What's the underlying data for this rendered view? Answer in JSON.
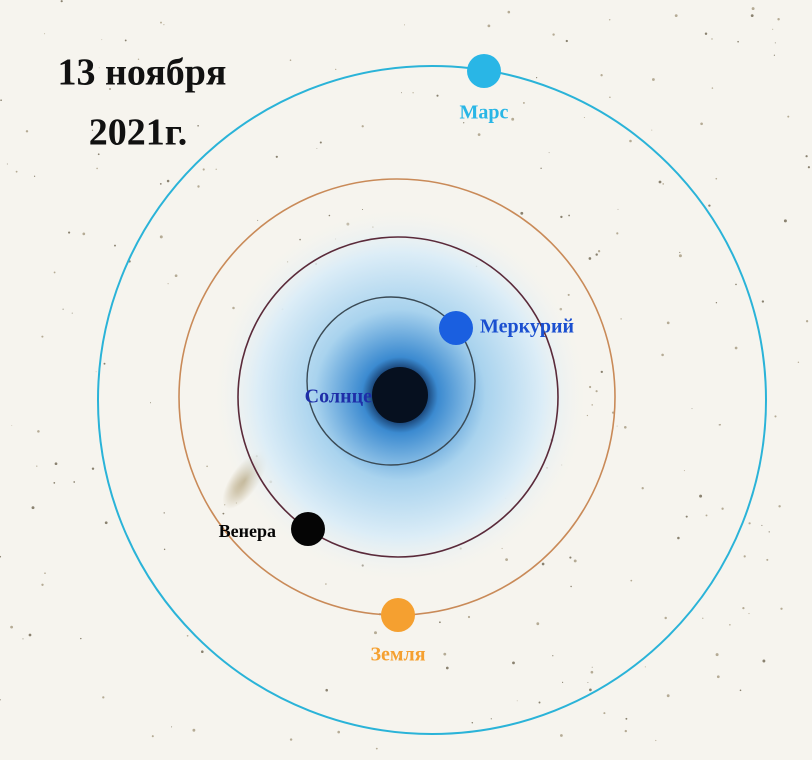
{
  "title": {
    "line1": "13 ноября",
    "line2": "2021г."
  },
  "bodies": {
    "sun": "Солнце",
    "mercury": "Меркурий",
    "venus": "Венера",
    "earth": "Земля",
    "mars": "Марс"
  }
}
